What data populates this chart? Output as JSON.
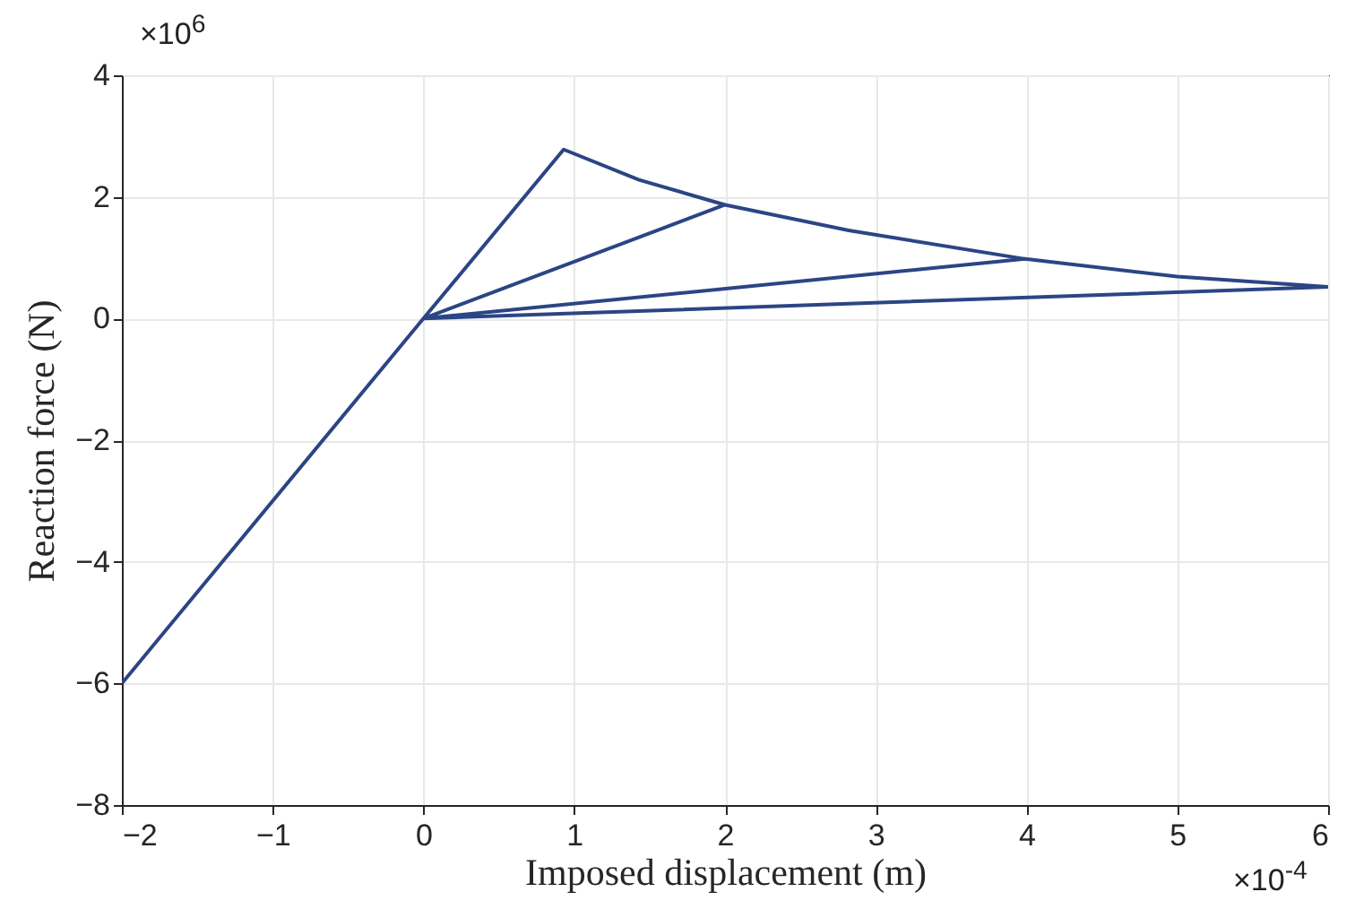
{
  "chart_data": {
    "type": "line",
    "xlabel": "Imposed displacement (m)",
    "ylabel": "Reaction force (N)",
    "series": [
      {
        "color": "#2b4585",
        "x": [
          -2,
          0,
          0.93,
          1.43,
          2,
          0,
          2,
          2.82,
          3.99,
          0,
          3.99,
          5,
          6,
          0
        ],
        "values": [
          -6,
          0,
          2.78,
          2.28,
          1.87,
          0,
          1.87,
          1.45,
          0.98,
          0,
          0.98,
          0.69,
          0.52,
          0
        ]
      }
    ],
    "xlim": [
      -2,
      6
    ],
    "xticks": [
      -2,
      -1,
      0,
      1,
      2,
      3,
      4,
      5,
      6
    ],
    "ylim": [
      -8,
      4
    ],
    "yticks": [
      -8,
      -6,
      -4,
      -2,
      0,
      2,
      4
    ],
    "grid": true,
    "line_style": "solid",
    "annotations": [
      "×10$^{6}$",
      "×10$^{-4}$"
    ]
  }
}
